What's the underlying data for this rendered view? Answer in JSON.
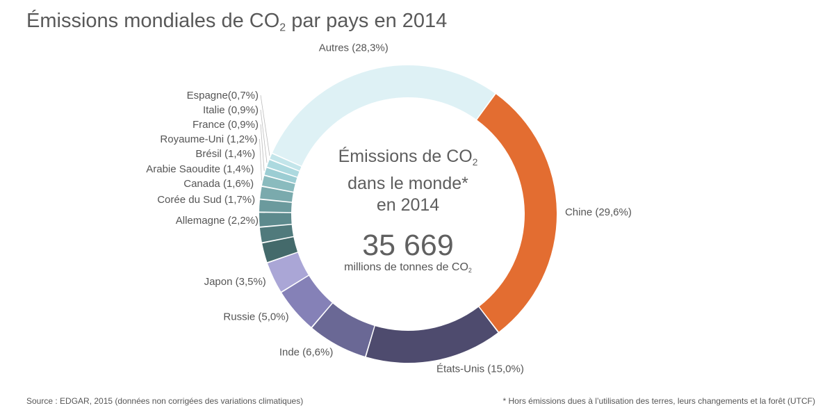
{
  "header": {
    "title_prefix": "Émissions mondiales de CO",
    "title_sub": "2",
    "title_suffix": " par pays en 2014"
  },
  "center": {
    "line1_prefix": "Émissions de CO",
    "line1_sub": "2",
    "line2": "dans le monde*",
    "line3": "en 2014",
    "total": "35 669",
    "unit_prefix": "millions de tonnes de CO",
    "unit_sub": "2"
  },
  "footer": {
    "source": "Source : EDGAR, 2015 (données non corrigées des variations climatiques)",
    "note": "* Hors émissions dues à l’utilisation des terres, leurs changements et la forêt (UTCF)"
  },
  "chart_data": {
    "type": "pie",
    "variant": "donut",
    "title": "Émissions mondiales de CO2 par pays en 2014",
    "total": 35669,
    "total_unit": "millions de tonnes de CO2",
    "slices": [
      {
        "name": "Chine",
        "label": "Chine (29,6%)",
        "value": 29.6,
        "color": "#e36d31"
      },
      {
        "name": "États-Unis",
        "label": "États-Unis (15,0%)",
        "value": 15.0,
        "color": "#4e4b6e"
      },
      {
        "name": "Inde",
        "label": "Inde (6,6%)",
        "value": 6.6,
        "color": "#6a6895"
      },
      {
        "name": "Russie",
        "label": "Russie (5,0%)",
        "value": 5.0,
        "color": "#8581b7"
      },
      {
        "name": "Japon",
        "label": "Japon (3,5%)",
        "value": 3.5,
        "color": "#aaa6d6"
      },
      {
        "name": "Allemagne",
        "label": "Allemagne (2,2%)",
        "value": 2.2,
        "color": "#446a6b"
      },
      {
        "name": "Corée du Sud",
        "label": "Corée du Sud (1,7%)",
        "value": 1.7,
        "color": "#507a7c"
      },
      {
        "name": "Canada",
        "label": "Canada (1,6%)",
        "value": 1.6,
        "color": "#5d8a8d"
      },
      {
        "name": "Arabie Saoudite",
        "label": "Arabie Saoudite (1,4%)",
        "value": 1.4,
        "color": "#6b9a9d"
      },
      {
        "name": "Brésil",
        "label": "Brésil (1,4%)",
        "value": 1.4,
        "color": "#7aaaad"
      },
      {
        "name": "Royaume-Uni",
        "label": "Royaume-Uni (1,2%)",
        "value": 1.2,
        "color": "#8abbbe"
      },
      {
        "name": "France",
        "label": "France (0,9%)",
        "value": 0.9,
        "color": "#9ccdd3"
      },
      {
        "name": "Italie",
        "label": "Italie (0,9%)",
        "value": 0.9,
        "color": "#acd9df"
      },
      {
        "name": "Espagne",
        "label": "Espagne(0,7%)",
        "value": 0.7,
        "color": "#c3e5ea"
      },
      {
        "name": "Autres",
        "label": "Autres (28,3%)",
        "value": 28.3,
        "color": "#def1f5"
      }
    ]
  }
}
